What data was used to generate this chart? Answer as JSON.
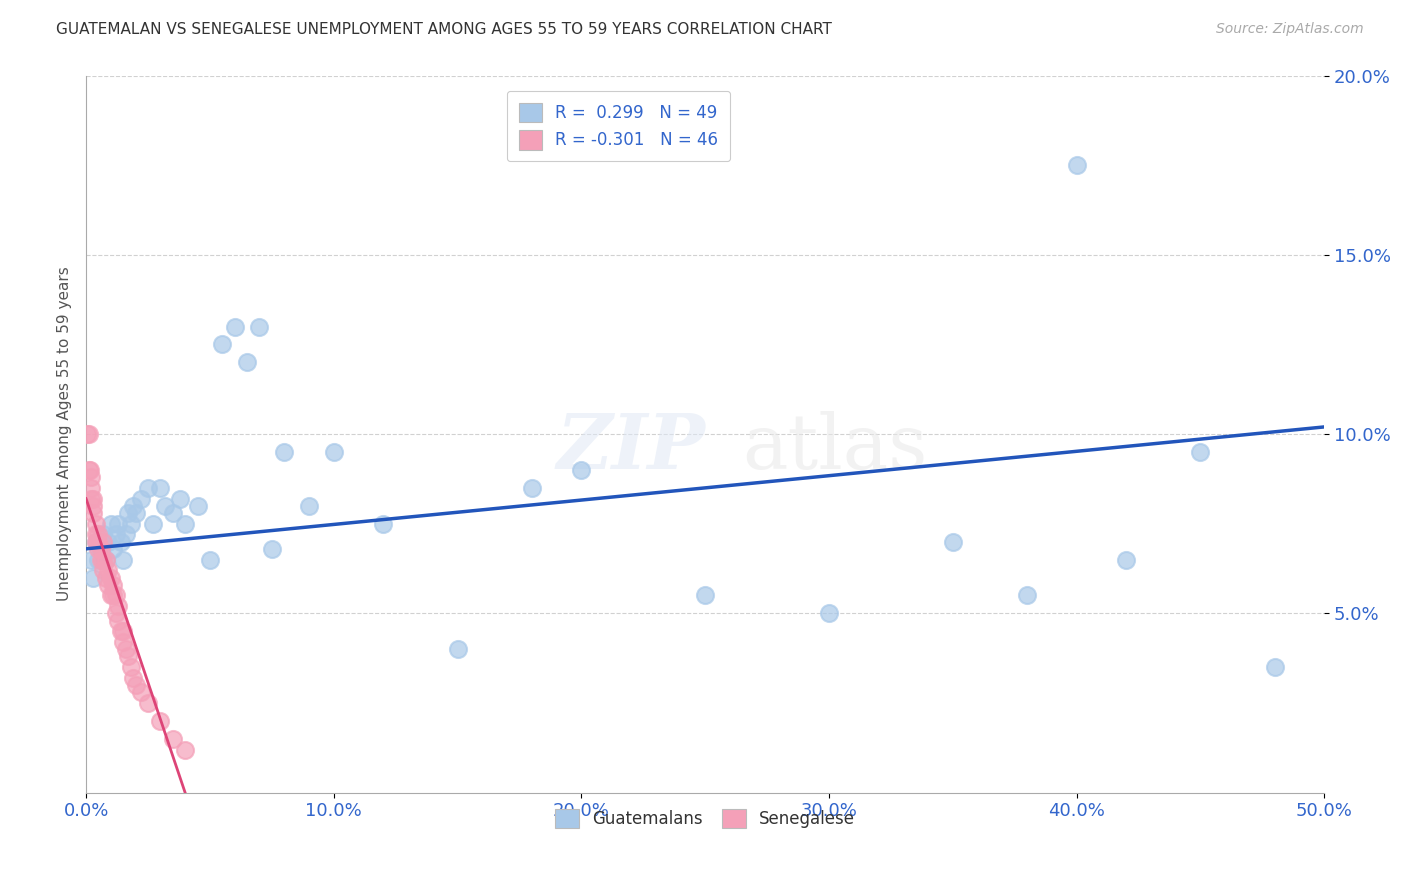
{
  "title": "GUATEMALAN VS SENEGALESE UNEMPLOYMENT AMONG AGES 55 TO 59 YEARS CORRELATION CHART",
  "source": "Source: ZipAtlas.com",
  "ylabel": "Unemployment Among Ages 55 to 59 years",
  "xlim": [
    0.0,
    0.5
  ],
  "ylim": [
    0.0,
    0.2
  ],
  "xticks": [
    0.0,
    0.1,
    0.2,
    0.3,
    0.4,
    0.5
  ],
  "yticks": [
    0.05,
    0.1,
    0.15,
    0.2
  ],
  "background_color": "#ffffff",
  "blue_color": "#a8c8e8",
  "pink_color": "#f4a0b8",
  "trend_blue": "#2255bb",
  "trend_pink": "#dd4477",
  "legend_label_blue": "Guatemalans",
  "legend_label_pink": "Senegalese",
  "guatemalan_x": [
    0.002,
    0.003,
    0.004,
    0.005,
    0.006,
    0.007,
    0.008,
    0.009,
    0.01,
    0.011,
    0.012,
    0.013,
    0.014,
    0.015,
    0.016,
    0.017,
    0.018,
    0.019,
    0.02,
    0.022,
    0.025,
    0.027,
    0.03,
    0.032,
    0.035,
    0.038,
    0.04,
    0.045,
    0.05,
    0.055,
    0.06,
    0.065,
    0.07,
    0.075,
    0.08,
    0.09,
    0.1,
    0.12,
    0.15,
    0.18,
    0.2,
    0.25,
    0.3,
    0.35,
    0.38,
    0.4,
    0.42,
    0.45,
    0.48
  ],
  "guatemalan_y": [
    0.065,
    0.06,
    0.07,
    0.065,
    0.068,
    0.072,
    0.065,
    0.07,
    0.075,
    0.068,
    0.072,
    0.075,
    0.07,
    0.065,
    0.072,
    0.078,
    0.075,
    0.08,
    0.078,
    0.082,
    0.085,
    0.075,
    0.085,
    0.08,
    0.078,
    0.082,
    0.075,
    0.08,
    0.065,
    0.125,
    0.13,
    0.12,
    0.13,
    0.068,
    0.095,
    0.08,
    0.095,
    0.075,
    0.04,
    0.085,
    0.09,
    0.055,
    0.05,
    0.07,
    0.055,
    0.175,
    0.065,
    0.095,
    0.035
  ],
  "senegalese_x": [
    0.0005,
    0.001,
    0.001,
    0.0015,
    0.002,
    0.002,
    0.002,
    0.003,
    0.003,
    0.003,
    0.004,
    0.004,
    0.004,
    0.005,
    0.005,
    0.005,
    0.006,
    0.006,
    0.007,
    0.007,
    0.007,
    0.008,
    0.008,
    0.009,
    0.009,
    0.01,
    0.01,
    0.011,
    0.011,
    0.012,
    0.012,
    0.013,
    0.013,
    0.014,
    0.015,
    0.015,
    0.016,
    0.017,
    0.018,
    0.019,
    0.02,
    0.022,
    0.025,
    0.03,
    0.035,
    0.04
  ],
  "senegalese_y": [
    0.1,
    0.1,
    0.09,
    0.09,
    0.085,
    0.082,
    0.088,
    0.082,
    0.078,
    0.08,
    0.075,
    0.072,
    0.07,
    0.07,
    0.068,
    0.072,
    0.068,
    0.065,
    0.065,
    0.07,
    0.062,
    0.06,
    0.065,
    0.058,
    0.062,
    0.055,
    0.06,
    0.055,
    0.058,
    0.05,
    0.055,
    0.048,
    0.052,
    0.045,
    0.045,
    0.042,
    0.04,
    0.038,
    0.035,
    0.032,
    0.03,
    0.028,
    0.025,
    0.02,
    0.015,
    0.012
  ],
  "blue_trend_x": [
    0.0,
    0.5
  ],
  "blue_trend_y": [
    0.068,
    0.102
  ],
  "pink_trend_x": [
    0.0,
    0.04
  ],
  "pink_trend_y": [
    0.082,
    0.0
  ]
}
